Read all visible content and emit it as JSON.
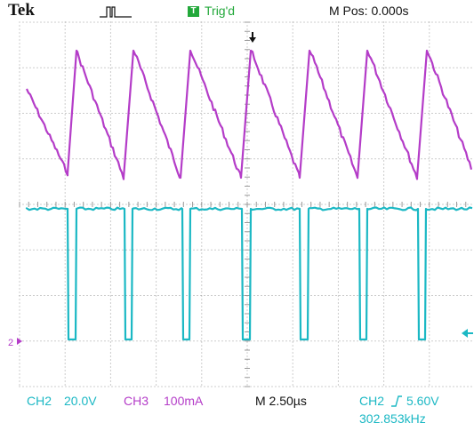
{
  "header": {
    "brand": "Tek",
    "trigger_status": "Trig'd",
    "trigger_badge": "T",
    "horizontal_position": "M Pos: 0.000s"
  },
  "colors": {
    "background": "#ffffff",
    "grid": "#9a9a9a",
    "ch2_trace": "#1bb8c4",
    "ch3_trace": "#b43cc8",
    "trigger_green": "#22a83a",
    "text_dark": "#111111"
  },
  "icons": {
    "acquisition": "run-pulse-icon",
    "trigger_position": "down-arrow-marker",
    "ch2_ground": "ch2-ground-marker",
    "trigger_level": "trigger-level-arrow"
  },
  "markers": {
    "ch2_ground_label": "2"
  },
  "footer": {
    "ch2_label": "CH2",
    "ch2_scale": "20.0V",
    "ch3_label": "CH3",
    "ch3_scale": "100mA",
    "timebase": "M 2.50µs",
    "trigger_source": "CH2",
    "trigger_slope": "rising-edge-icon",
    "trigger_level": "5.60V",
    "frequency": "302.853kHz"
  },
  "display": {
    "divisions_x": 10,
    "divisions_y": 8,
    "period_us": 3.3
  }
}
